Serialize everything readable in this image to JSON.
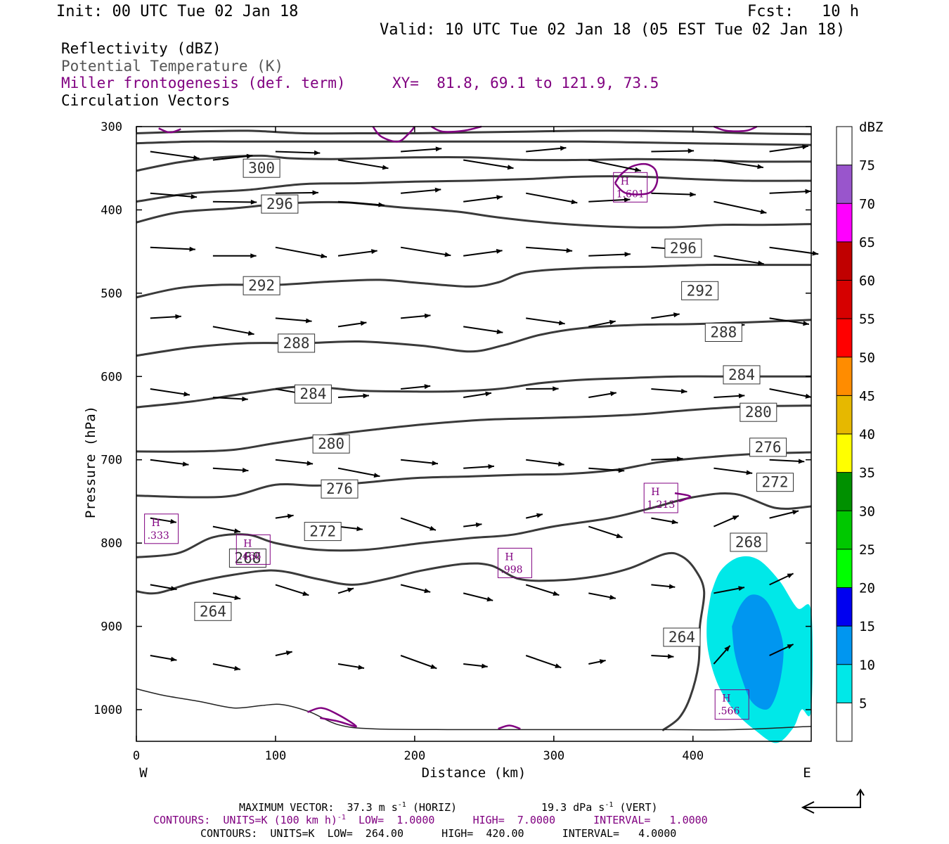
{
  "header": {
    "init": "Init: 00 UTC Tue 02 Jan 18",
    "fcst": "Fcst:   10 h",
    "valid": "Valid: 10 UTC Tue 02 Jan 18 (05 EST Tue 02 Jan 18)"
  },
  "legend": {
    "line1": "Reflectivity (dBZ)",
    "line2": "Potential Temperature (K)",
    "line3": "Miller frontogenesis (def. term)",
    "xy": "XY=  81.8, 69.1 to 121.9, 73.5",
    "line4": "Circulation Vectors"
  },
  "footer": {
    "vector_left": "MAXIMUM VECTOR:  37.3 m s",
    "vector_left_sup": "-1",
    "vector_left_tail": " (HORIZ)",
    "vector_right": "19.3 dPa s",
    "vector_right_sup": "-1",
    "vector_right_tail": " (VERT)",
    "contours_fronto": "CONTOURS:  UNITS=K (100 km h)",
    "contours_fronto_sup": "-1",
    "contours_fronto_tail": "  LOW=  1.0000      HIGH=  7.0000      INTERVAL=   1.0000",
    "contours_theta": "CONTOURS:  UNITS=K  LOW=  264.00      HIGH=  420.00      INTERVAL=   4.0000"
  },
  "colors": {
    "theta": "#3a3a3a",
    "fronto": "#800080",
    "refl_5": "#00e8e8",
    "refl_10": "#0096f0"
  },
  "chart_data": {
    "type": "cross-section",
    "xlabel": "Distance (km)",
    "ylabel": "Pressure (hPa)",
    "xlim": [
      0,
      485
    ],
    "ylim": [
      1038,
      300
    ],
    "x_ticks": [
      0,
      100,
      200,
      300,
      400
    ],
    "y_ticks": [
      300,
      400,
      500,
      600,
      700,
      800,
      900,
      1000
    ],
    "x_end_labels": {
      "left": "W",
      "right": "E"
    },
    "colorbar": {
      "title": "dBZ",
      "levels": [
        5,
        10,
        15,
        20,
        25,
        30,
        35,
        40,
        45,
        50,
        55,
        60,
        65,
        70,
        75
      ],
      "colors": [
        "#ffffff",
        "#00e8e8",
        "#0096f0",
        "#0000f0",
        "#00ff00",
        "#00c800",
        "#009000",
        "#ffff00",
        "#e6b800",
        "#ff8c00",
        "#ff0000",
        "#d60000",
        "#c00000",
        "#ff00ff",
        "#9955cc",
        "#ffffff"
      ]
    },
    "theta_contours": [
      {
        "level": 264,
        "points": [
          [
            0,
            858
          ],
          [
            15,
            860
          ],
          [
            40,
            848
          ],
          [
            70,
            838
          ],
          [
            100,
            833
          ],
          [
            130,
            843
          ],
          [
            155,
            850
          ],
          [
            180,
            843
          ],
          [
            205,
            833
          ],
          [
            235,
            825
          ],
          [
            255,
            827
          ],
          [
            275,
            843
          ],
          [
            300,
            845
          ],
          [
            330,
            840
          ],
          [
            355,
            830
          ],
          [
            380,
            813
          ],
          [
            392,
            816
          ],
          [
            402,
            833
          ],
          [
            408,
            858
          ],
          [
            405,
            900
          ],
          [
            404,
            945
          ],
          [
            398,
            985
          ],
          [
            390,
            1010
          ],
          [
            378,
            1025
          ]
        ]
      },
      {
        "level": 268,
        "points": [
          [
            0,
            817
          ],
          [
            30,
            812
          ],
          [
            55,
            793
          ],
          [
            80,
            790
          ],
          [
            100,
            800
          ],
          [
            130,
            808
          ],
          [
            165,
            808
          ],
          [
            205,
            800
          ],
          [
            240,
            794
          ],
          [
            270,
            790
          ],
          [
            300,
            780
          ],
          [
            340,
            770
          ],
          [
            370,
            758
          ],
          [
            400,
            745
          ],
          [
            430,
            741
          ],
          [
            460,
            758
          ],
          [
            485,
            756
          ]
        ]
      },
      {
        "level": 272,
        "points": [
          [
            0,
            743
          ],
          [
            40,
            745
          ],
          [
            70,
            743
          ],
          [
            100,
            730
          ],
          [
            130,
            731
          ],
          [
            160,
            728
          ],
          [
            200,
            722
          ],
          [
            240,
            720
          ],
          [
            275,
            718
          ],
          [
            310,
            717
          ],
          [
            345,
            712
          ],
          [
            375,
            703
          ],
          [
            410,
            697
          ],
          [
            445,
            693
          ],
          [
            485,
            691
          ]
        ]
      },
      {
        "level": 276,
        "points": [
          [
            0,
            690
          ],
          [
            40,
            690
          ],
          [
            70,
            688
          ],
          [
            100,
            680
          ],
          [
            140,
            670
          ],
          [
            175,
            663
          ],
          [
            210,
            657
          ],
          [
            250,
            652
          ],
          [
            290,
            650
          ],
          [
            330,
            648
          ],
          [
            365,
            645
          ],
          [
            400,
            640
          ],
          [
            440,
            636
          ],
          [
            485,
            635
          ]
        ]
      },
      {
        "level": 280,
        "points": [
          [
            0,
            637
          ],
          [
            40,
            630
          ],
          [
            80,
            620
          ],
          [
            120,
            612
          ],
          [
            160,
            617
          ],
          [
            195,
            618
          ],
          [
            225,
            618
          ],
          [
            260,
            615
          ],
          [
            290,
            608
          ],
          [
            320,
            604
          ],
          [
            350,
            602
          ],
          [
            390,
            600
          ],
          [
            430,
            600
          ],
          [
            485,
            600
          ]
        ]
      },
      {
        "level": 284,
        "points": [
          [
            0,
            575
          ],
          [
            40,
            565
          ],
          [
            80,
            560
          ],
          [
            120,
            560
          ],
          [
            160,
            558
          ],
          [
            205,
            563
          ],
          [
            240,
            570
          ],
          [
            265,
            562
          ],
          [
            290,
            550
          ],
          [
            320,
            542
          ],
          [
            360,
            538
          ],
          [
            400,
            537
          ],
          [
            440,
            535
          ],
          [
            485,
            532
          ]
        ]
      },
      {
        "level": 288,
        "points": [
          [
            0,
            505
          ],
          [
            30,
            494
          ],
          [
            60,
            490
          ],
          [
            100,
            490
          ],
          [
            140,
            486
          ],
          [
            175,
            484
          ],
          [
            205,
            488
          ],
          [
            240,
            492
          ],
          [
            260,
            487
          ],
          [
            280,
            475
          ],
          [
            320,
            470
          ],
          [
            370,
            468
          ],
          [
            410,
            466
          ],
          [
            450,
            466
          ],
          [
            485,
            466
          ]
        ]
      },
      {
        "level": 292,
        "points": [
          [
            0,
            415
          ],
          [
            30,
            403
          ],
          [
            70,
            398
          ],
          [
            110,
            392
          ],
          [
            150,
            391
          ],
          [
            190,
            397
          ],
          [
            230,
            402
          ],
          [
            260,
            409
          ],
          [
            300,
            416
          ],
          [
            340,
            420
          ],
          [
            380,
            421
          ],
          [
            420,
            418
          ],
          [
            450,
            418
          ],
          [
            485,
            417
          ]
        ]
      },
      {
        "level": 296,
        "points": [
          [
            0,
            390
          ],
          [
            40,
            380
          ],
          [
            80,
            376
          ],
          [
            120,
            369
          ],
          [
            160,
            368
          ],
          [
            200,
            366
          ],
          [
            240,
            365
          ],
          [
            280,
            363
          ],
          [
            320,
            360
          ],
          [
            360,
            360
          ],
          [
            400,
            363
          ],
          [
            440,
            365
          ],
          [
            485,
            365
          ]
        ]
      },
      {
        "level": 300,
        "points": [
          [
            0,
            353
          ],
          [
            30,
            343
          ],
          [
            60,
            337
          ],
          [
            90,
            335
          ],
          [
            110,
            338
          ],
          [
            140,
            339
          ],
          [
            170,
            338
          ],
          [
            200,
            337
          ],
          [
            240,
            337
          ],
          [
            280,
            340
          ],
          [
            320,
            340
          ],
          [
            360,
            339
          ],
          [
            400,
            340
          ],
          [
            440,
            342
          ],
          [
            485,
            342
          ]
        ]
      },
      {
        "level": 304,
        "points": [
          [
            0,
            320
          ],
          [
            40,
            318
          ],
          [
            80,
            318
          ],
          [
            120,
            318
          ],
          [
            160,
            318
          ],
          [
            200,
            318
          ],
          [
            240,
            318
          ],
          [
            280,
            318
          ],
          [
            320,
            318
          ],
          [
            360,
            319
          ],
          [
            400,
            320
          ],
          [
            440,
            321
          ],
          [
            485,
            322
          ]
        ]
      },
      {
        "level": 308,
        "points": [
          [
            0,
            308
          ],
          [
            40,
            306
          ],
          [
            80,
            305
          ],
          [
            120,
            308
          ],
          [
            160,
            308
          ],
          [
            200,
            308
          ],
          [
            240,
            307
          ],
          [
            280,
            306
          ],
          [
            320,
            305
          ],
          [
            360,
            305
          ],
          [
            400,
            306
          ],
          [
            440,
            308
          ],
          [
            485,
            309
          ]
        ]
      }
    ],
    "theta_labels": [
      {
        "text": "300",
        "x": 90,
        "p": 350
      },
      {
        "text": "296",
        "x": 103,
        "p": 393
      },
      {
        "text": "292",
        "x": 90,
        "p": 491
      },
      {
        "text": "288",
        "x": 115,
        "p": 560
      },
      {
        "text": "284",
        "x": 127,
        "p": 621
      },
      {
        "text": "280",
        "x": 140,
        "p": 681
      },
      {
        "text": "276",
        "x": 146,
        "p": 735
      },
      {
        "text": "272",
        "x": 134,
        "p": 786
      },
      {
        "text": "268",
        "x": 80,
        "p": 818
      },
      {
        "text": "264",
        "x": 55,
        "p": 882
      },
      {
        "text": "264",
        "x": 392,
        "p": 913
      },
      {
        "text": "296",
        "x": 393,
        "p": 446
      },
      {
        "text": "292",
        "x": 405,
        "p": 497
      },
      {
        "text": "288",
        "x": 422,
        "p": 547
      },
      {
        "text": "284",
        "x": 435,
        "p": 598
      },
      {
        "text": "280",
        "x": 447,
        "p": 643
      },
      {
        "text": "276",
        "x": 454,
        "p": 685
      },
      {
        "text": "272",
        "x": 459,
        "p": 727
      },
      {
        "text": "268",
        "x": 440,
        "p": 799
      }
    ],
    "fronto_highs": [
      {
        "label": "H",
        "value": "1.601",
        "x": 355,
        "p": 372
      },
      {
        "label": "H",
        "value": "1.213",
        "x": 377,
        "p": 745
      },
      {
        "label": "H",
        "value": ".333",
        "x": 18,
        "p": 782
      },
      {
        "label": "H",
        "value": ".466",
        "x": 84,
        "p": 807
      },
      {
        "label": "H",
        "value": ".998",
        "x": 272,
        "p": 823
      },
      {
        "label": "H",
        "value": ".566",
        "x": 428,
        "p": 993
      }
    ],
    "reflectivity": [
      {
        "dbz": 5,
        "points": [
          [
            413,
            860
          ],
          [
            420,
            833
          ],
          [
            433,
            817
          ],
          [
            447,
            820
          ],
          [
            462,
            845
          ],
          [
            475,
            878
          ],
          [
            485,
            882
          ],
          [
            485,
            1000
          ],
          [
            478,
            1000
          ],
          [
            472,
            1022
          ],
          [
            460,
            1040
          ],
          [
            445,
            1025
          ],
          [
            430,
            1002
          ],
          [
            418,
            970
          ],
          [
            411,
            930
          ],
          [
            410,
            895
          ]
        ]
      },
      {
        "dbz": 10,
        "points": [
          [
            428,
            900
          ],
          [
            434,
            875
          ],
          [
            442,
            862
          ],
          [
            452,
            868
          ],
          [
            460,
            893
          ],
          [
            465,
            925
          ],
          [
            463,
            962
          ],
          [
            458,
            990
          ],
          [
            452,
            1000
          ],
          [
            442,
            990
          ],
          [
            435,
            962
          ],
          [
            430,
            932
          ]
        ]
      }
    ]
  }
}
